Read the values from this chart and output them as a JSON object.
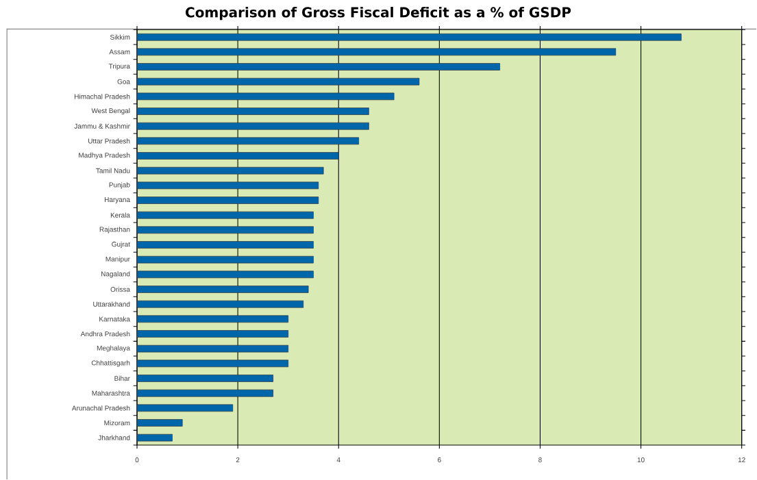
{
  "chart_data": {
    "type": "bar",
    "orientation": "horizontal",
    "title": "Comparison of Gross Fiscal Deficit as a % of GSDP",
    "categories": [
      "Sikkim",
      "Assam",
      "Tripura",
      "Goa",
      "Himachal Pradesh",
      "West Bengal",
      "Jammu & Kashmir",
      "Uttar Pradesh",
      "Madhya Pradesh",
      "Tamil Nadu",
      "Punjab",
      "Haryana",
      "Kerala",
      "Rajasthan",
      "Gujrat",
      "Manipur",
      "Nagaland",
      "Orissa",
      "Uttarakhand",
      "Karnataka",
      "Andhra Pradesh",
      "Meghalaya",
      "Chhattisgarh",
      "Bihar",
      "Maharashtra",
      "Arunachal Pradesh",
      "Mizoram",
      "Jharkhand"
    ],
    "values": [
      10.8,
      9.5,
      7.2,
      5.6,
      5.1,
      4.6,
      4.6,
      4.4,
      4.0,
      3.7,
      3.6,
      3.6,
      3.5,
      3.5,
      3.5,
      3.5,
      3.5,
      3.4,
      3.3,
      3.0,
      3.0,
      3.0,
      3.0,
      2.7,
      2.7,
      1.9,
      0.9,
      0.7
    ],
    "color": "#0066aa",
    "xlim": [
      0,
      12
    ],
    "xticks": [
      0,
      2,
      4,
      6,
      8,
      10,
      12
    ],
    "grid": "x"
  }
}
